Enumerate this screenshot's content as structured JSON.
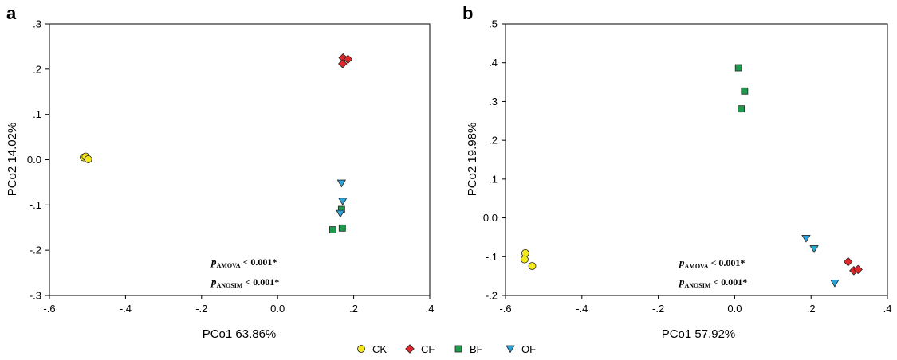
{
  "colors": {
    "CK": "#f5e81c",
    "CF": "#e0282a",
    "BF": "#1f9a4c",
    "OF": "#2aa3d8"
  },
  "legend": [
    {
      "key": "CK",
      "label": "CK",
      "marker": "circle"
    },
    {
      "key": "CF",
      "label": "CF",
      "marker": "diamond"
    },
    {
      "key": "BF",
      "label": "BF",
      "marker": "square"
    },
    {
      "key": "OF",
      "label": "OF",
      "marker": "triangle-down"
    }
  ],
  "chart_data": [
    {
      "type": "scatter",
      "panel_label": "a",
      "xlabel": "PCo1 63.86%",
      "ylabel": "PCo2 14.02%",
      "xlim": [
        -0.6,
        0.4
      ],
      "ylim": [
        -0.3,
        0.3
      ],
      "xticks": [
        -0.6,
        -0.4,
        -0.2,
        0.0,
        0.2,
        0.4
      ],
      "xtick_labels": [
        "-.6",
        "-.4",
        "-.2",
        "0.0",
        ".2",
        ".4"
      ],
      "yticks": [
        -0.3,
        -0.2,
        -0.1,
        0.0,
        0.1,
        0.2,
        0.3
      ],
      "ytick_labels": [
        "-.3",
        "-.2",
        "-.1",
        "0.0",
        ".1",
        ".2",
        ".3"
      ],
      "grid": false,
      "series": [
        {
          "key": "CK",
          "points": [
            [
              -0.51,
              0.005
            ],
            [
              -0.505,
              0.007
            ],
            [
              -0.498,
              0.001
            ]
          ]
        },
        {
          "key": "CF",
          "points": [
            [
              0.172,
              0.225
            ],
            [
              0.185,
              0.222
            ],
            [
              0.171,
              0.212
            ]
          ]
        },
        {
          "key": "BF",
          "points": [
            [
              0.168,
              -0.11
            ],
            [
              0.145,
              -0.155
            ],
            [
              0.17,
              -0.151
            ]
          ]
        },
        {
          "key": "OF",
          "points": [
            [
              0.168,
              -0.052
            ],
            [
              0.171,
              -0.092
            ],
            [
              0.165,
              -0.119
            ]
          ]
        }
      ],
      "annotations": [
        {
          "italic": "p",
          "subscript": "AMOVA",
          "text": " < 0.001*"
        },
        {
          "italic": "p",
          "subscript": "ANOSIM",
          "text": " < 0.001*"
        }
      ]
    },
    {
      "type": "scatter",
      "panel_label": "b",
      "xlabel": "PCo1 57.92%",
      "ylabel": "PCo2 19.98%",
      "xlim": [
        -0.6,
        0.4
      ],
      "ylim": [
        -0.2,
        0.5
      ],
      "xticks": [
        -0.6,
        -0.4,
        -0.2,
        0.0,
        0.2,
        0.4
      ],
      "xtick_labels": [
        "-.6",
        "-.4",
        "-.2",
        "0.0",
        ".2",
        ".4"
      ],
      "yticks": [
        -0.2,
        -0.1,
        0.0,
        0.1,
        0.2,
        0.3,
        0.4,
        0.5
      ],
      "ytick_labels": [
        "-.2",
        "-.1",
        "0.0",
        ".1",
        ".2",
        ".3",
        ".4",
        ".5"
      ],
      "grid": false,
      "series": [
        {
          "key": "CK",
          "points": [
            [
              -0.548,
              -0.091
            ],
            [
              -0.55,
              -0.107
            ],
            [
              -0.53,
              -0.124
            ]
          ]
        },
        {
          "key": "CF",
          "points": [
            [
              0.297,
              -0.113
            ],
            [
              0.312,
              -0.136
            ],
            [
              0.323,
              -0.133
            ]
          ]
        },
        {
          "key": "BF",
          "points": [
            [
              0.01,
              0.387
            ],
            [
              0.026,
              0.327
            ],
            [
              0.017,
              0.281
            ]
          ]
        },
        {
          "key": "OF",
          "points": [
            [
              0.187,
              -0.053
            ],
            [
              0.208,
              -0.08
            ],
            [
              0.262,
              -0.168
            ]
          ]
        }
      ],
      "annotations": [
        {
          "italic": "p",
          "subscript": "AMOVA",
          "text": " < 0.001*"
        },
        {
          "italic": "p",
          "subscript": "ANOSIM",
          "text": " < 0.001*"
        }
      ]
    }
  ]
}
